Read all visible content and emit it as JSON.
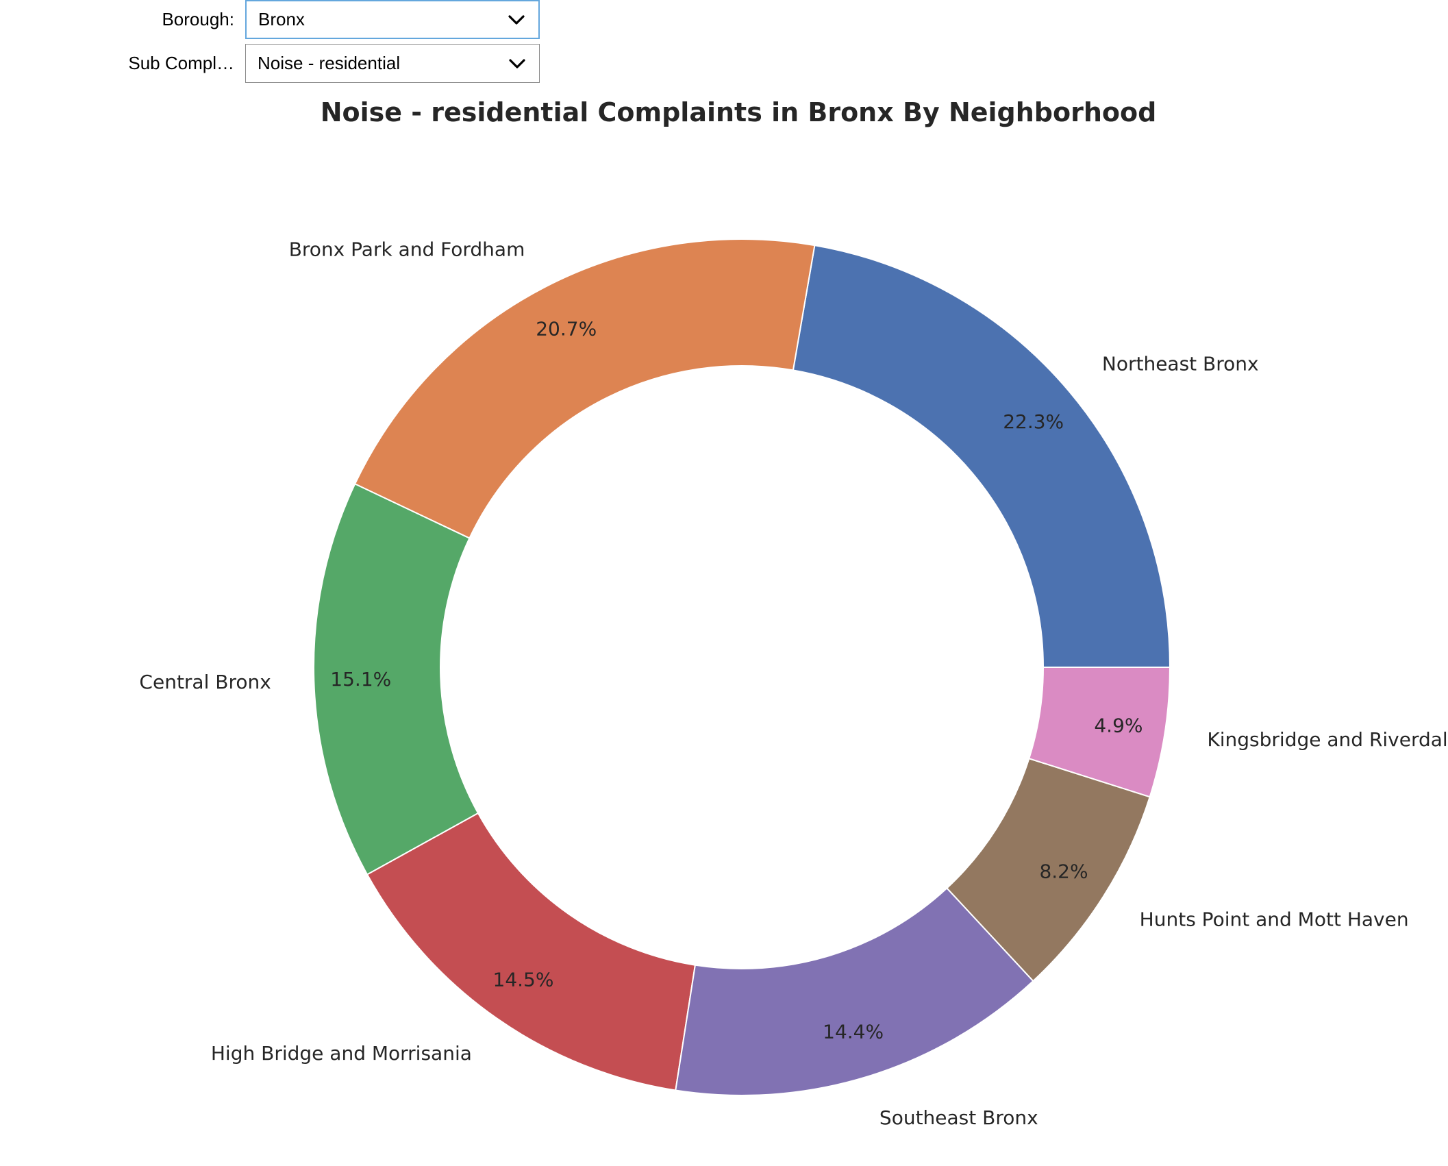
{
  "controls": {
    "borough": {
      "label": "Borough:",
      "value": "Bronx"
    },
    "sub_complaint": {
      "label": "Sub Compl…",
      "value": "Noise - residential"
    }
  },
  "icons": {
    "dropdown": "chevron-down-icon"
  },
  "chart_data": {
    "type": "pie",
    "donut": true,
    "title": "Noise - residential Complaints in Bronx By Neighborhood",
    "slices": [
      {
        "label": "Northeast Bronx",
        "value": 22.3,
        "pct_label": "22.3%",
        "color": "#4c72b0"
      },
      {
        "label": "Bronx Park and Fordham",
        "value": 20.7,
        "pct_label": "20.7%",
        "color": "#dd8452"
      },
      {
        "label": "Central Bronx",
        "value": 15.1,
        "pct_label": "15.1%",
        "color": "#55a868"
      },
      {
        "label": "High Bridge and Morrisania",
        "value": 14.5,
        "pct_label": "14.5%",
        "color": "#c44e52"
      },
      {
        "label": "Southeast Bronx",
        "value": 14.4,
        "pct_label": "14.4%",
        "color": "#8172b3"
      },
      {
        "label": "Hunts Point and Mott Haven",
        "value": 8.2,
        "pct_label": "8.2%",
        "color": "#937860"
      },
      {
        "label": "Kingsbridge and Riverdale",
        "value": 4.9,
        "pct_label": "4.9%",
        "color": "#da8bc3"
      }
    ]
  }
}
